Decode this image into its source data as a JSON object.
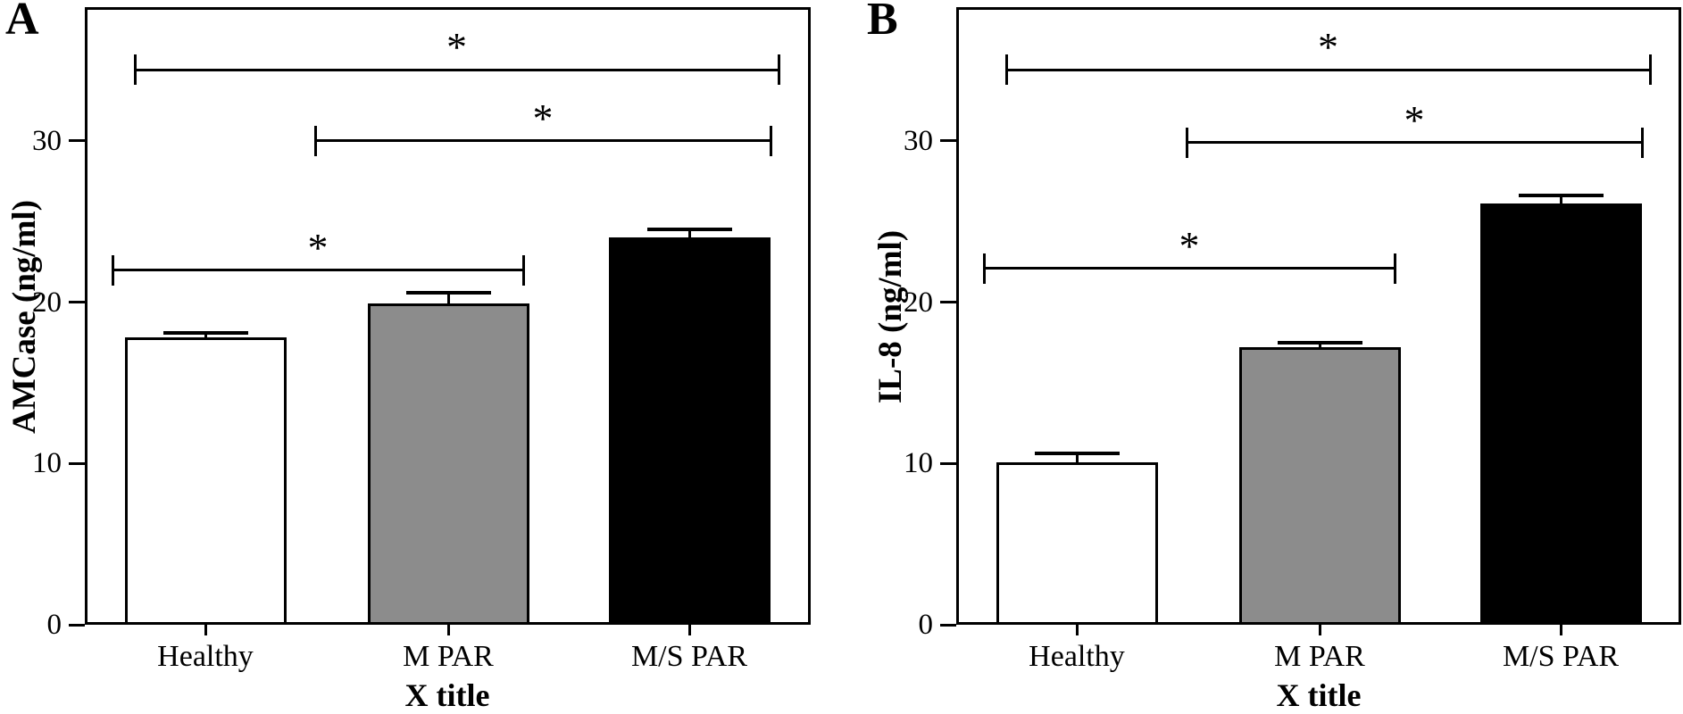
{
  "figure_background": "#ffffff",
  "line_color": "#000000",
  "chart_data": [
    {
      "type": "bar",
      "panel_label": "A",
      "title": "",
      "ylabel": "AMCase (ng/ml)",
      "xlabel": "X title",
      "categories": [
        "Healthy",
        "M PAR",
        "M/S PAR"
      ],
      "values": [
        17.8,
        19.9,
        24.0
      ],
      "errors_plus": [
        0.3,
        0.7,
        0.5
      ],
      "bar_colors": [
        "#ffffff",
        "#8c8c8c",
        "#000000"
      ],
      "yticks": [
        0,
        10,
        20,
        30
      ],
      "ytick_labels": [
        "0",
        "10",
        "20",
        "30"
      ],
      "ylim": [
        0,
        38.3
      ],
      "grid": false,
      "legend": "none",
      "significance": [
        {
          "from": "Healthy",
          "to": "M/S PAR",
          "y": 34.4,
          "label": "*"
        },
        {
          "from": "M PAR",
          "to": "M/S PAR",
          "y": 30.0,
          "label": "*"
        },
        {
          "from": "Healthy",
          "to": "M PAR",
          "y": 22.0,
          "label": "*"
        }
      ]
    },
    {
      "type": "bar",
      "panel_label": "B",
      "title": "",
      "ylabel": "IL-8 (ng/ml)",
      "xlabel": "X title",
      "categories": [
        "Healthy",
        "M PAR",
        "M/S PAR"
      ],
      "values": [
        10.1,
        17.2,
        26.1
      ],
      "errors_plus": [
        0.5,
        0.3,
        0.5
      ],
      "bar_colors": [
        "#ffffff",
        "#8c8c8c",
        "#000000"
      ],
      "yticks": [
        0,
        10,
        20,
        30
      ],
      "ytick_labels": [
        "0",
        "10",
        "20",
        "30"
      ],
      "ylim": [
        0,
        38.3
      ],
      "grid": false,
      "legend": "none",
      "significance": [
        {
          "from": "Healthy",
          "to": "M/S PAR",
          "y": 34.4,
          "label": "*"
        },
        {
          "from": "M PAR",
          "to": "M/S PAR",
          "y": 29.9,
          "label": "*"
        },
        {
          "from": "Healthy",
          "to": "M PAR",
          "y": 22.1,
          "label": "*"
        }
      ]
    }
  ]
}
